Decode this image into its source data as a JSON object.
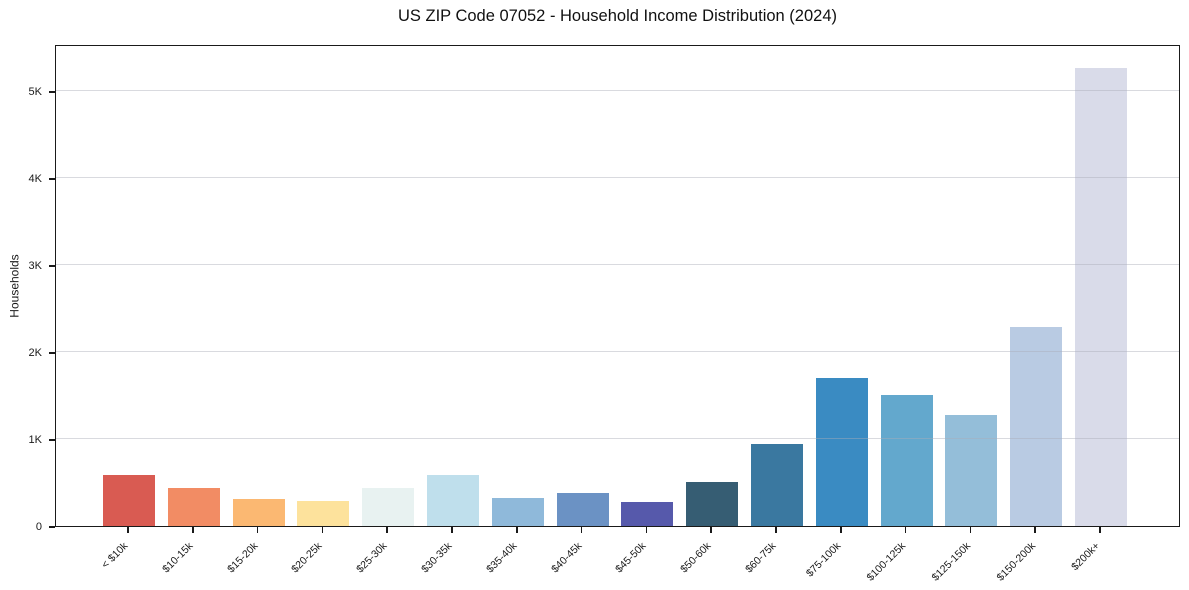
{
  "chart_data": {
    "type": "bar",
    "title": "US ZIP Code 07052 - Household Income Distribution (2024)",
    "xlabel": "",
    "ylabel": "Households",
    "categories": [
      "< $10k",
      "$10-15k",
      "$15-20k",
      "$20-25k",
      "$25-30k",
      "$30-35k",
      "$35-40k",
      "$40-45k",
      "$45-50k",
      "$50-60k",
      "$60-75k",
      "$75-100k",
      "$100-125k",
      "$125-150k",
      "$150-200k",
      "$200k+"
    ],
    "values": [
      585,
      440,
      315,
      285,
      435,
      585,
      325,
      385,
      280,
      505,
      945,
      1700,
      1510,
      1275,
      2290,
      5270
    ],
    "bar_colors": [
      "#d95b52",
      "#f28c64",
      "#fbb872",
      "#fde29c",
      "#e8f2f1",
      "#bfdfec",
      "#8fb9da",
      "#6b92c4",
      "#5659ab",
      "#365d73",
      "#3a78a0",
      "#3a8bc2",
      "#63a8cd",
      "#94bed9",
      "#b9cbe3",
      "#d9dbe9"
    ],
    "ylim": [
      0,
      5540
    ],
    "yticks": {
      "values": [
        0,
        1000,
        2000,
        3000,
        4000,
        5000
      ],
      "labels": [
        "0",
        "1K",
        "2K",
        "3K",
        "4K",
        "5K"
      ]
    },
    "grid": "horizontal",
    "legend": "none",
    "colors": {
      "background": "#ffffff",
      "spine": "#1a1a1a",
      "grid": "rgba(170,172,185,0.45)",
      "text": "#1a1a1a"
    }
  }
}
